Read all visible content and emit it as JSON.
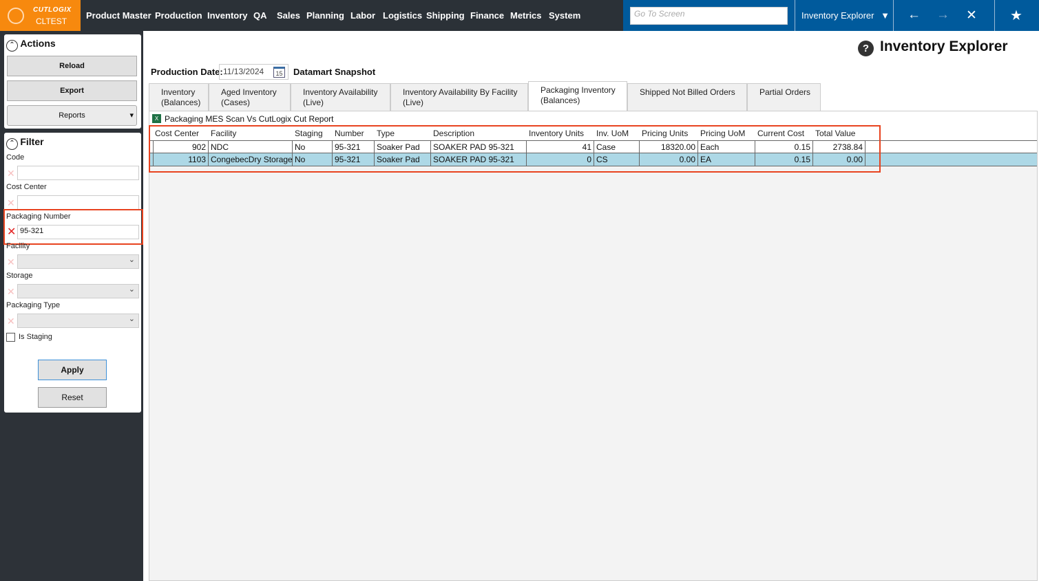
{
  "app": {
    "brand": "CUTLOGIX",
    "env": "CLTEST"
  },
  "nav": [
    "Product Master",
    "Production",
    "Inventory",
    "QA",
    "Sales",
    "Planning",
    "Labor",
    "Logistics",
    "Shipping",
    "Finance",
    "Metrics",
    "System"
  ],
  "goto_placeholder": "Go To Screen",
  "screen_select": "Inventory Explorer",
  "page_title": "Inventory Explorer",
  "actions": {
    "title": "Actions",
    "reload": "Reload",
    "export": "Export",
    "reports": "Reports"
  },
  "filter": {
    "title": "Filter",
    "code_label": "Code",
    "code_value": "",
    "cost_center_label": "Cost Center",
    "cost_center_value": "",
    "packaging_number_label": "Packaging Number",
    "packaging_number_value": "95-321",
    "facility_label": "Facility",
    "storage_label": "Storage",
    "packaging_type_label": "Packaging Type",
    "is_staging_label": "Is Staging",
    "is_staging": false,
    "apply": "Apply",
    "reset": "Reset"
  },
  "production_date_label": "Production Date:",
  "production_date": "11/13/2024",
  "calendar_day": "15",
  "snapshot_label": "Datamart Snapshot",
  "tabs": [
    {
      "l1": "Inventory",
      "l2": "(Balances)"
    },
    {
      "l1": "Aged Inventory",
      "l2": "(Cases)"
    },
    {
      "l1": "Inventory Availability",
      "l2": "(Live)"
    },
    {
      "l1": "Inventory Availability By Facility",
      "l2": "(Live)"
    },
    {
      "l1": "Packaging Inventory",
      "l2": "(Balances)",
      "active": true
    },
    {
      "l1": "Shipped Not Billed Orders",
      "l2": ""
    },
    {
      "l1": "Partial Orders",
      "l2": ""
    }
  ],
  "report_link": "Packaging MES Scan Vs CutLogix Cut Report",
  "table": {
    "columns": [
      "Cost Center",
      "Facility",
      "Staging",
      "Number",
      "Type",
      "Description",
      "Inventory Units",
      "Inv. UoM",
      "Pricing Units",
      "Pricing UoM",
      "Current Cost",
      "Total Value"
    ],
    "rows": [
      [
        "902",
        "NDC",
        "No",
        "95-321",
        "Soaker Pad",
        "SOAKER PAD 95-321",
        "41",
        "Case",
        "18320.00",
        "Each",
        "0.15",
        "2738.84"
      ],
      [
        "1103",
        "CongebecDry Storage",
        "No",
        "95-321",
        "Soaker Pad",
        "SOAKER PAD 95-321",
        "0",
        "CS",
        "0.00",
        "EA",
        "0.15",
        "0.00"
      ]
    ],
    "selected_row": 1
  },
  "colors": {
    "accent_orange": "#f7890e",
    "nav_blue": "#005a9c",
    "highlight": "#e8421e",
    "selected_row": "#add8e6"
  }
}
